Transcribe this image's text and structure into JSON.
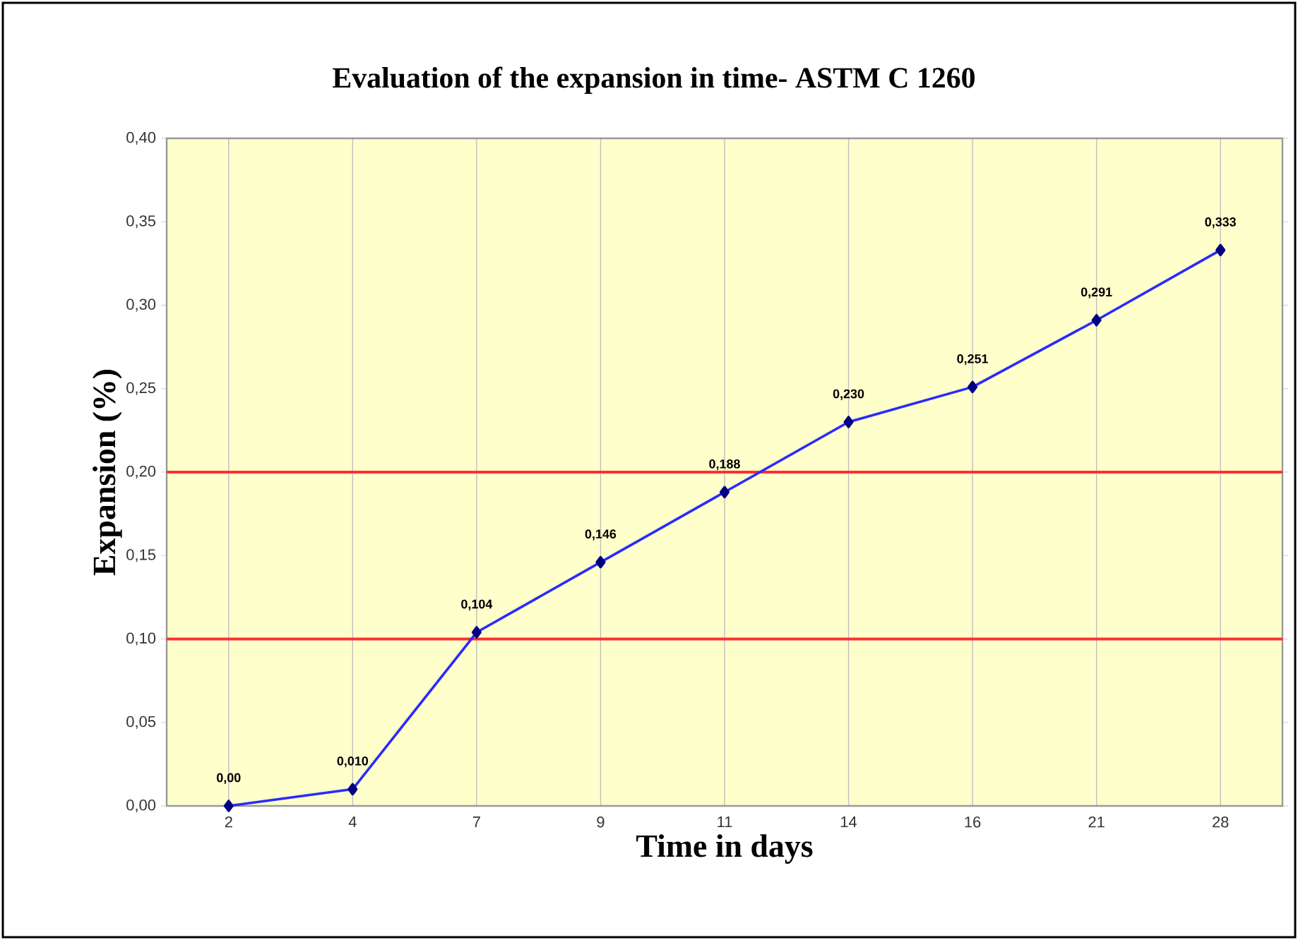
{
  "chart_data": {
    "type": "line",
    "title": "Evaluation of the expansion in time- ASTM C 1260",
    "xlabel": "Time in days",
    "ylabel": "Expansion (%)",
    "categories": [
      "2",
      "4",
      "7",
      "9",
      "11",
      "14",
      "16",
      "21",
      "28"
    ],
    "values": [
      0.0,
      0.01,
      0.104,
      0.146,
      0.188,
      0.23,
      0.251,
      0.291,
      0.333
    ],
    "value_labels": [
      "0,00",
      "0,010",
      "0,104",
      "0,146",
      "0,188",
      "0,230",
      "0,251",
      "0,291",
      "0,333"
    ],
    "color": "#2a2aff",
    "ylim": [
      0,
      0.4
    ],
    "yticks": [
      {
        "value": 0,
        "label": "0,00"
      },
      {
        "value": 0.05,
        "label": "0,05"
      },
      {
        "value": 0.1,
        "label": "0,10"
      },
      {
        "value": 0.15,
        "label": "0,15"
      },
      {
        "value": 0.2,
        "label": "0,20"
      },
      {
        "value": 0.25,
        "label": "0,25"
      },
      {
        "value": 0.3,
        "label": "0,30"
      },
      {
        "value": 0.35,
        "label": "0,35"
      },
      {
        "value": 0.4,
        "label": "0,40"
      }
    ],
    "ref_lines": [
      {
        "axis": "y",
        "value": 0.1,
        "color": "#ff3030"
      },
      {
        "axis": "y",
        "value": 0.2,
        "color": "#ff3030"
      }
    ],
    "marker": "diamond",
    "line_style": "solid",
    "grid": "x"
  }
}
